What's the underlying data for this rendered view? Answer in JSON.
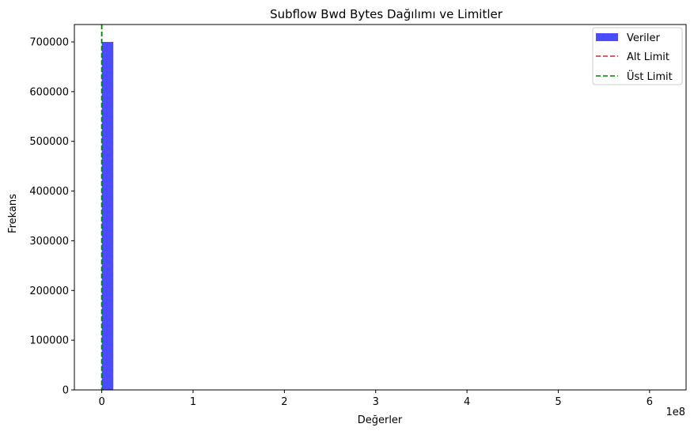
{
  "chart_data": {
    "type": "bar",
    "title": "Subflow Bwd Bytes Dağılımı ve Limitler",
    "xlabel": "Değerler",
    "ylabel": "Frekans",
    "x_offset_label": "1e8",
    "xlim": [
      -0.3,
      6.4
    ],
    "ylim": [
      0,
      735000
    ],
    "x_ticks": [
      0,
      1,
      2,
      3,
      4,
      5,
      6
    ],
    "x_tick_labels": [
      "0",
      "1",
      "2",
      "3",
      "4",
      "5",
      "6"
    ],
    "y_ticks": [
      0,
      100000,
      200000,
      300000,
      400000,
      500000,
      600000,
      700000
    ],
    "y_tick_labels": [
      "0",
      "100000",
      "200000",
      "300000",
      "400000",
      "500000",
      "600000",
      "700000"
    ],
    "grid": false,
    "legend_position": "top-right",
    "series": [
      {
        "name": "Veriler",
        "kind": "histogram",
        "color": "#4b4bff",
        "bins": [
          {
            "start": 0.0,
            "end": 0.126,
            "value": 700000
          }
        ]
      },
      {
        "name": "Alt Limit",
        "kind": "vline",
        "x": 0.0,
        "color": "#d62728",
        "dash": "dashed"
      },
      {
        "name": "Üst Limit",
        "kind": "vline",
        "x": 0.0,
        "color": "#008000",
        "dash": "dashed"
      }
    ]
  }
}
